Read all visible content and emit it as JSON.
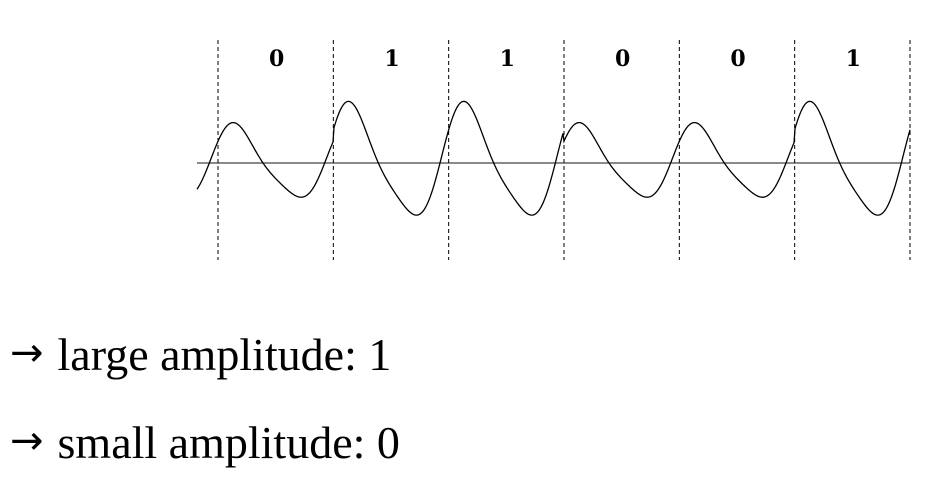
{
  "bits": [
    "0",
    "1",
    "1",
    "0",
    "0",
    "1"
  ],
  "legend": [
    {
      "arrow": "→",
      "text": "large amplitude: 1"
    },
    {
      "arrow": "→",
      "text": "small amplitude: 0"
    }
  ]
}
